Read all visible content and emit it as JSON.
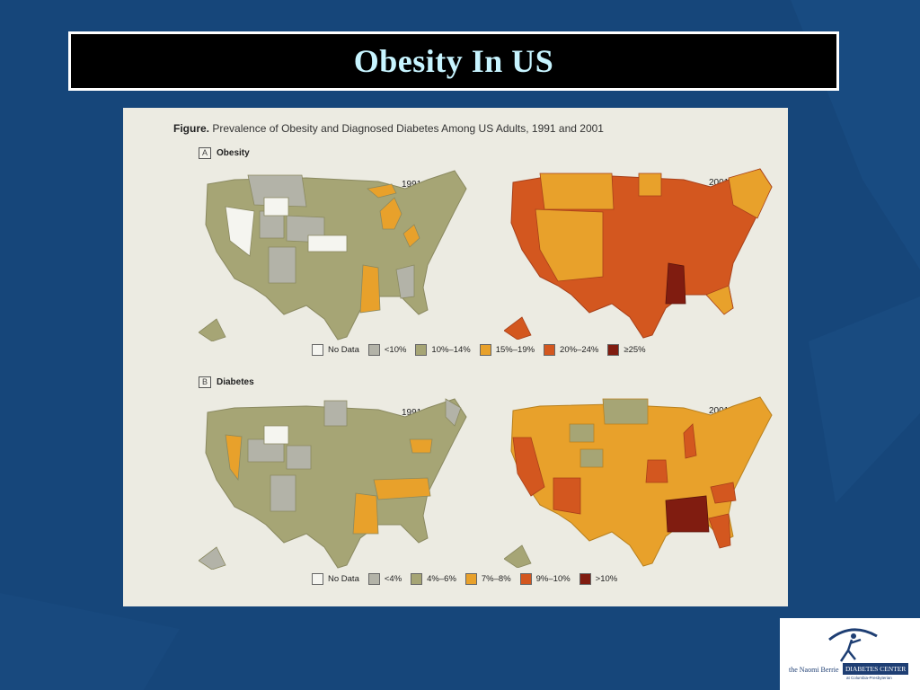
{
  "slide": {
    "title": "Obesity In US"
  },
  "figure": {
    "caption_bold": "Figure.",
    "caption_text": "Prevalence of Obesity and Diagnosed Diabetes Among US Adults, 1991 and 2001",
    "panels": [
      {
        "letter": "A",
        "name": "Obesity",
        "years": [
          "1991",
          "2001"
        ],
        "legend": [
          {
            "label": "No Data",
            "color": "#f5f5f0"
          },
          {
            "label": "<10%",
            "color": "#b3b3a8"
          },
          {
            "label": "10%–14%",
            "color": "#a6a575"
          },
          {
            "label": "15%–19%",
            "color": "#e8a12b"
          },
          {
            "label": "20%–24%",
            "color": "#d3571f"
          },
          {
            "label": "≥25%",
            "color": "#801c10"
          }
        ]
      },
      {
        "letter": "B",
        "name": "Diabetes",
        "years": [
          "1991",
          "2001"
        ],
        "legend": [
          {
            "label": "No Data",
            "color": "#f5f5f0"
          },
          {
            "label": "<4%",
            "color": "#b3b3a8"
          },
          {
            "label": "4%–6%",
            "color": "#a6a575"
          },
          {
            "label": "7%–8%",
            "color": "#e8a12b"
          },
          {
            "label": "9%–10%",
            "color": "#d3571f"
          },
          {
            "label": ">10%",
            "color": "#801c10"
          }
        ]
      }
    ]
  },
  "logo": {
    "left_text": "the Naomi Berrie",
    "box_text": "DIABETES CENTER",
    "sub_text": "at Columbia-Presbyterian"
  }
}
